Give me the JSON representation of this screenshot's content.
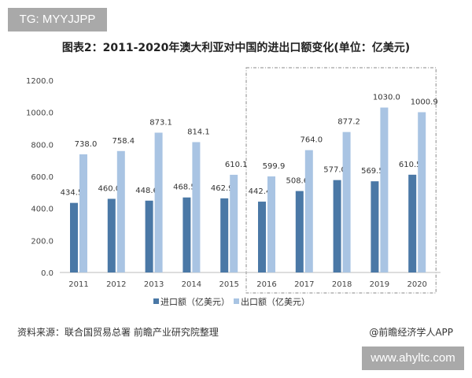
{
  "tag_label": "TG: MYYJJPP",
  "watermark_label": "www.ahyltc.com",
  "source": "资料来源：联合国贸易总署 前瞻产业研究院整理",
  "brand": "@前瞻经济学人APP",
  "chart_data": {
    "type": "bar",
    "title": "图表2：2011-2020年澳大利亚对中国的进出口额变化(单位：亿美元)",
    "categories": [
      "2011",
      "2012",
      "2013",
      "2014",
      "2015",
      "2016",
      "2017",
      "2018",
      "2019",
      "2020"
    ],
    "series": [
      {
        "name": "进口额（亿美元）",
        "color": "#4a78a6",
        "values": [
          434.5,
          460.0,
          448.6,
          468.5,
          462.9,
          442.4,
          508.6,
          577.0,
          569.5,
          610.5
        ]
      },
      {
        "name": "出口额（亿美元）",
        "color": "#a9c4e3",
        "values": [
          738.0,
          758.4,
          873.1,
          814.1,
          610.1,
          599.9,
          764.0,
          877.2,
          1030.0,
          1000.9
        ]
      }
    ],
    "ylim": [
      0,
      1200
    ],
    "yticks": [
      "0.0",
      "200.0",
      "400.0",
      "600.0",
      "800.0",
      "1000.0",
      "1200.0"
    ],
    "grid": false,
    "legend": "bottom",
    "highlight_range": [
      "2016",
      "2020"
    ]
  }
}
